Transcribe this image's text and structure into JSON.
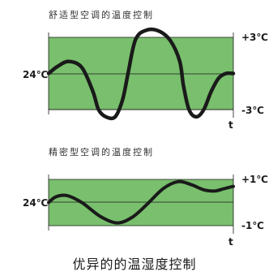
{
  "chart_data": [
    {
      "type": "line",
      "title": "舒适型空调的温度控制",
      "ylabel": "24℃",
      "xlabel": "t",
      "y_ticks": [
        "+3℃",
        "-3℃"
      ],
      "ylim": [
        -3,
        3
      ],
      "band_color": "#79bf6d",
      "line_color": "#1a1a1a",
      "series": [
        {
          "x": [
            0,
            0.05,
            0.11,
            0.18,
            0.24,
            0.27,
            0.31,
            0.36,
            0.4,
            0.43,
            0.47,
            0.53,
            0.6,
            0.66,
            0.71,
            0.73,
            0.76,
            0.8,
            0.84,
            0.88,
            0.92,
            0.96,
            1.0
          ],
          "y": [
            0,
            0.6,
            1.0,
            0.5,
            -1.5,
            -3.0,
            -3.6,
            -3.6,
            -2.2,
            0.0,
            2.8,
            3.6,
            3.5,
            2.7,
            1.0,
            -1.0,
            -3.0,
            -3.6,
            -3.0,
            -1.5,
            -0.4,
            0.0,
            0.0
          ]
        }
      ]
    },
    {
      "type": "line",
      "title": "精密型空调的温度控制",
      "ylabel": "24℃",
      "xlabel": "t",
      "y_ticks": [
        "+1℃",
        "-1℃"
      ],
      "ylim": [
        -1,
        1
      ],
      "band_color": "#79bf6d",
      "line_color": "#1a1a1a",
      "series": [
        {
          "x": [
            0,
            0.04,
            0.1,
            0.18,
            0.28,
            0.37,
            0.45,
            0.53,
            0.62,
            0.7,
            0.77,
            0.84,
            0.9,
            0.95,
            1.0
          ],
          "y": [
            0.0,
            0.25,
            0.3,
            0.0,
            -0.6,
            -0.88,
            -0.65,
            -0.1,
            0.6,
            0.9,
            0.78,
            0.55,
            0.5,
            0.6,
            0.7
          ]
        }
      ]
    }
  ],
  "caption": "优异的的温湿度控制"
}
